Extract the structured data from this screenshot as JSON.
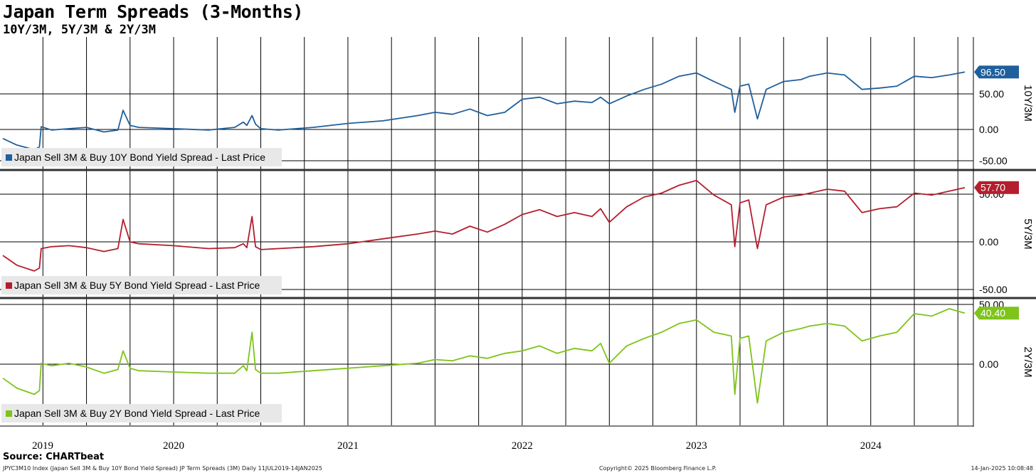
{
  "title": "Japan Term Spreads (3-Months)",
  "subtitle": "10Y/3M, 5Y/3M & 2Y/3M",
  "source": "Source: CHARTbeat",
  "footer": {
    "left": "JPYC3M10 Index (Japan Sell 3M & Buy 10Y Bond Yield Spread) JP Term Spreads (3M)  Daily 11JUL2019-14JAN2025",
    "center": "Copyright© 2025 Bloomberg Finance L.P.",
    "right": "14-Jan-2025 10:08:48"
  },
  "x_axis": {
    "labels": [
      {
        "label": "2019",
        "x": 2019.45
      },
      {
        "label": "2020",
        "x": 2020.0
      },
      {
        "label": "2021",
        "x": 2021.0
      },
      {
        "label": "2022",
        "x": 2022.0
      },
      {
        "label": "2023",
        "x": 2023.0
      },
      {
        "label": "2024",
        "x": 2024.0
      }
    ],
    "range": [
      2019.52,
      2025.04
    ]
  },
  "chart_data": [
    {
      "type": "line",
      "panel_label": "10Y/3M",
      "legend": "Japan Sell 3M & Buy 10Y Bond Yield Spread - Last Price",
      "color": "#1f5f9c",
      "last_value_label": "96.50",
      "yticks": [
        "50.00",
        "0.00",
        "-50.00"
      ],
      "ylim": [
        -52,
        150
      ],
      "x": [
        2019.52,
        2019.6,
        2019.7,
        2019.73,
        2019.74,
        2019.8,
        2019.9,
        2020.0,
        2020.1,
        2020.18,
        2020.21,
        2020.25,
        2020.3,
        2020.5,
        2020.7,
        2020.85,
        2020.9,
        2020.92,
        2020.95,
        2020.97,
        2021.0,
        2021.1,
        2021.3,
        2021.5,
        2021.7,
        2021.9,
        2022.0,
        2022.1,
        2022.2,
        2022.3,
        2022.4,
        2022.5,
        2022.6,
        2022.7,
        2022.8,
        2022.9,
        2022.95,
        2023.0,
        2023.1,
        2023.2,
        2023.3,
        2023.4,
        2023.5,
        2023.6,
        2023.7,
        2023.72,
        2023.75,
        2023.8,
        2023.85,
        2023.9,
        2024.0,
        2024.1,
        2024.15,
        2024.25,
        2024.35,
        2024.45,
        2024.55,
        2024.65,
        2024.75,
        2024.85,
        2024.95,
        2025.04
      ],
      "y": [
        -5,
        -15,
        -22,
        -18,
        13,
        8,
        10,
        12,
        5,
        8,
        38,
        15,
        12,
        10,
        8,
        12,
        20,
        15,
        30,
        17,
        10,
        8,
        12,
        18,
        22,
        30,
        35,
        32,
        40,
        30,
        35,
        55,
        58,
        48,
        52,
        50,
        58,
        48,
        60,
        70,
        78,
        90,
        95,
        82,
        70,
        35,
        75,
        78,
        25,
        70,
        82,
        85,
        90,
        95,
        92,
        70,
        72,
        75,
        90,
        88,
        92,
        96.5
      ]
    },
    {
      "type": "line",
      "panel_label": "5Y/3M",
      "legend": "Japan Sell 3M & Buy 5Y Bond Yield Spread - Last Price",
      "color": "#b41e2e",
      "last_value_label": "57.70",
      "yticks": [
        "50.00",
        "0.00",
        "-50.00"
      ],
      "ylim": [
        -55,
        75
      ],
      "x": [
        2019.52,
        2019.6,
        2019.7,
        2019.73,
        2019.74,
        2019.8,
        2019.9,
        2020.0,
        2020.1,
        2020.18,
        2020.21,
        2020.25,
        2020.3,
        2020.5,
        2020.7,
        2020.85,
        2020.9,
        2020.92,
        2020.95,
        2020.97,
        2021.0,
        2021.1,
        2021.3,
        2021.5,
        2021.7,
        2021.9,
        2022.0,
        2022.1,
        2022.2,
        2022.3,
        2022.4,
        2022.5,
        2022.6,
        2022.7,
        2022.8,
        2022.9,
        2022.95,
        2023.0,
        2023.1,
        2023.2,
        2023.3,
        2023.4,
        2023.5,
        2023.6,
        2023.7,
        2023.72,
        2023.75,
        2023.8,
        2023.85,
        2023.9,
        2024.0,
        2024.1,
        2024.15,
        2024.25,
        2024.35,
        2024.45,
        2024.55,
        2024.65,
        2024.75,
        2024.85,
        2024.95,
        2025.04
      ],
      "y": [
        -12,
        -22,
        -28,
        -25,
        -5,
        -3,
        -2,
        -4,
        -8,
        -5,
        25,
        2,
        0,
        -2,
        -5,
        -4,
        0,
        -4,
        28,
        -3,
        -6,
        -5,
        -3,
        0,
        5,
        10,
        13,
        10,
        18,
        12,
        20,
        30,
        35,
        28,
        32,
        28,
        36,
        22,
        38,
        48,
        52,
        60,
        65,
        50,
        40,
        -3,
        42,
        45,
        -5,
        40,
        48,
        50,
        52,
        56,
        54,
        32,
        36,
        38,
        52,
        50,
        54,
        57.7
      ]
    },
    {
      "type": "line",
      "panel_label": "2Y/3M",
      "legend": "Japan Sell 3M & Buy 2Y Bond Yield Spread - Last Price",
      "color": "#7ec41a",
      "last_value_label": "40.40",
      "yticks": [
        "50.00",
        "0.00"
      ],
      "ylim": [
        -50,
        52
      ],
      "x": [
        2019.52,
        2019.6,
        2019.7,
        2019.73,
        2019.74,
        2019.8,
        2019.9,
        2020.0,
        2020.1,
        2020.18,
        2020.21,
        2020.25,
        2020.3,
        2020.5,
        2020.7,
        2020.85,
        2020.9,
        2020.92,
        2020.95,
        2020.97,
        2021.0,
        2021.1,
        2021.3,
        2021.5,
        2021.7,
        2021.9,
        2022.0,
        2022.1,
        2022.2,
        2022.3,
        2022.4,
        2022.5,
        2022.6,
        2022.7,
        2022.8,
        2022.9,
        2022.95,
        2023.0,
        2023.1,
        2023.2,
        2023.3,
        2023.4,
        2023.5,
        2023.6,
        2023.7,
        2023.72,
        2023.75,
        2023.8,
        2023.85,
        2023.9,
        2024.0,
        2024.1,
        2024.15,
        2024.25,
        2024.35,
        2024.45,
        2024.55,
        2024.65,
        2024.75,
        2024.85,
        2024.95,
        2025.04
      ],
      "y": [
        -12,
        -20,
        -25,
        -22,
        0,
        -2,
        0,
        -3,
        -8,
        -5,
        10,
        -4,
        -6,
        -7,
        -8,
        -8,
        -2,
        -6,
        25,
        -5,
        -8,
        -8,
        -6,
        -4,
        -2,
        0,
        3,
        2,
        6,
        4,
        8,
        10,
        14,
        8,
        12,
        10,
        16,
        0,
        14,
        20,
        25,
        32,
        35,
        25,
        22,
        -25,
        20,
        22,
        -32,
        18,
        25,
        28,
        30,
        32,
        30,
        18,
        22,
        25,
        40,
        38,
        44,
        40.4
      ]
    }
  ]
}
